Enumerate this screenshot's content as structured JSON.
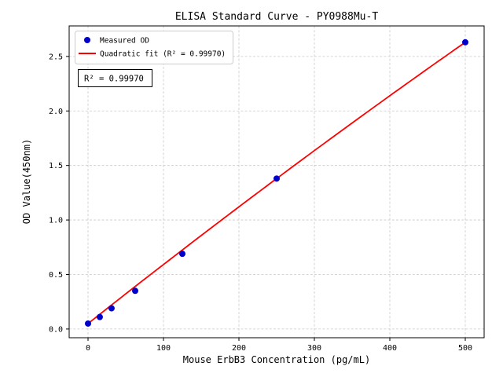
{
  "chart_data": {
    "type": "scatter",
    "title": "ELISA Standard Curve - PY0988Mu-T",
    "xlabel": "Mouse ErbB3 Concentration (pg/mL)",
    "ylabel": "OD Value(450nm)",
    "xlim": [
      -25,
      525
    ],
    "ylim": [
      -0.08,
      2.78
    ],
    "x_ticks": [
      0,
      100,
      200,
      300,
      400,
      500
    ],
    "x_tick_labels": [
      "0",
      "100",
      "200",
      "300",
      "400",
      "500"
    ],
    "y_ticks": [
      0.0,
      0.5,
      1.0,
      1.5,
      2.0,
      2.5
    ],
    "y_tick_labels": [
      "0.0",
      "0.5",
      "1.0",
      "1.5",
      "2.0",
      "2.5"
    ],
    "grid": true,
    "points": {
      "name": "Measured OD",
      "color": "#0000cd",
      "x": [
        0,
        15.6,
        31.2,
        62.5,
        125,
        250,
        500
      ],
      "y": [
        0.05,
        0.11,
        0.19,
        0.35,
        0.69,
        1.38,
        2.63
      ]
    },
    "fit": {
      "name": "Quadratic fit (R² = 0.99970)",
      "color": "#ff0000",
      "quadratic": {
        "a": -6.4e-07,
        "b": 0.00548,
        "c": 0.05
      },
      "x_range": [
        0,
        500
      ]
    },
    "legend": {
      "position": "upper-left",
      "entries": [
        {
          "marker": "point",
          "color": "#0000cd",
          "label": "Measured OD"
        },
        {
          "marker": "line",
          "color": "#ff0000",
          "label": "Quadratic fit (R² = 0.99970)"
        }
      ]
    },
    "annotation": "R² = 0.99970",
    "r_squared": 0.9997,
    "background": "#ffffff"
  }
}
